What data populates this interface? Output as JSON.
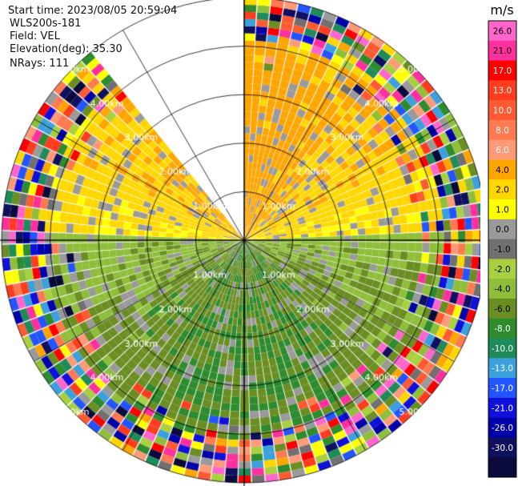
{
  "header": {
    "start_time_label": "Start time: 2023/08/05 20:59:04",
    "station": "WLS200s-181",
    "field_label": "Field: VEL",
    "elevation_label": "Elevation(deg): 35.30",
    "nrays_label": "NRays: 111"
  },
  "chart_data": {
    "type": "heatmap",
    "subtype": "ppi-polar",
    "title": "",
    "field": "VEL",
    "units": "m/s",
    "range_rings_km": [
      1,
      2,
      3,
      4,
      5
    ],
    "max_range_km": 5.0,
    "ring_labels": [
      "1.00km",
      "2.00km",
      "3.00km",
      "4.00km",
      "5.00km"
    ],
    "gap_azimuth_deg": [
      -38,
      0
    ],
    "colorbar": {
      "label": "m/s",
      "ticks": [
        "26.0",
        "21.0",
        "17.0",
        "13.0",
        "10.0",
        "8.0",
        "6.0",
        "4.0",
        "2.0",
        "1.0",
        "0.0",
        "-1.0",
        "-2.0",
        "-4.0",
        "-6.0",
        "-8.0",
        "-10.0",
        "-13.0",
        "-17.0",
        "-21.0",
        "-26.0",
        "-30.0"
      ],
      "colors": [
        "#ff66cc",
        "#ff2f9e",
        "#ff0000",
        "#ff3c1e",
        "#ff5a32",
        "#ff7a50",
        "#ff9a78",
        "#ffa500",
        "#ffd700",
        "#ffff00",
        "#9a9a9a",
        "#707070",
        "#a8d040",
        "#8fbf3a",
        "#6b8e23",
        "#2e8b2e",
        "#1e8b5a",
        "#3ca0dc",
        "#2255ff",
        "#1010dd",
        "#0000aa",
        "#101060",
        "#0a0a3c"
      ]
    }
  }
}
